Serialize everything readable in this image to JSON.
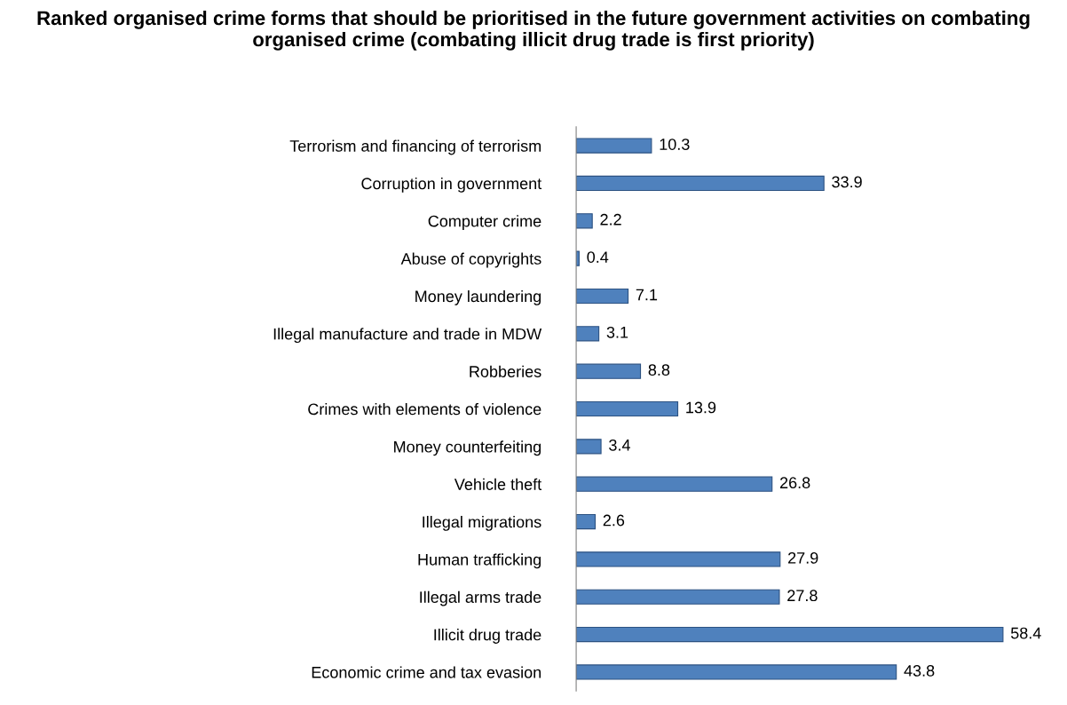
{
  "chart_data": {
    "type": "bar",
    "orientation": "horizontal",
    "title": "Ranked organised crime forms that should be prioritised in the future government activities on combating organised crime (combating illicit drug trade is first priority)",
    "categories": [
      "Terrorism and financing of terrorism",
      "Corruption in government",
      "Computer crime",
      "Abuse of copyrights",
      "Money laundering",
      "Illegal manufacture and trade in MDW",
      "Robberies",
      "Crimes with elements of violence",
      "Money counterfeiting",
      "Vehicle theft",
      "Illegal migrations",
      "Human trafficking",
      "Illegal arms trade",
      "Illicit drug trade",
      "Economic crime and tax evasion"
    ],
    "values": [
      10.3,
      33.9,
      2.2,
      0.4,
      7.1,
      3.1,
      8.8,
      13.9,
      3.4,
      26.8,
      2.6,
      27.9,
      27.8,
      58.4,
      43.8
    ],
    "color": "#4f81bd",
    "data_labels": true,
    "grid": false,
    "legend": false
  }
}
